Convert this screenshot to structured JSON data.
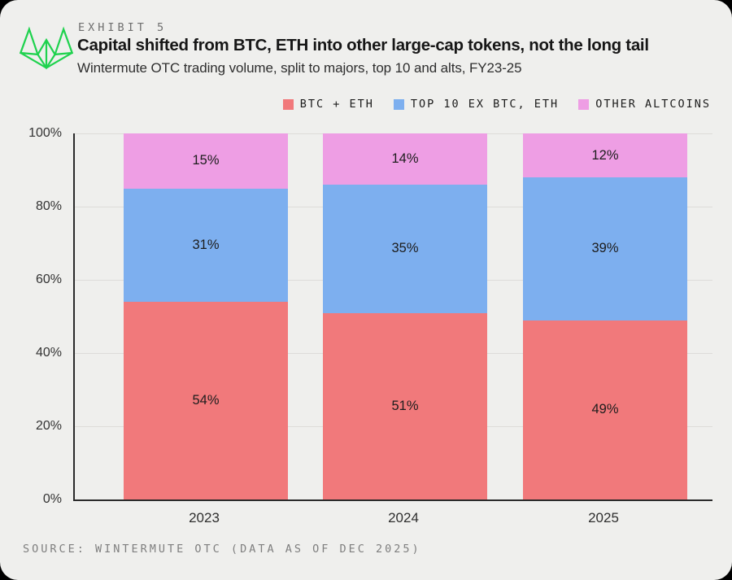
{
  "colors": {
    "background": "#000000",
    "card": "#efefed",
    "axis": "#2b2b2b",
    "grid": "#dddcd9",
    "text_dark": "#161616",
    "text_mid": "#2e2e2e",
    "text_gray": "#6f6f6f",
    "source_gray": "#7f7f7f",
    "logo_green": "#1fd24e"
  },
  "header": {
    "exhibit_label": "EXHIBIT 5",
    "title": "Capital shifted from BTC, ETH into other large-cap tokens, not the long tail",
    "subtitle": "Wintermute OTC trading volume, split to majors, top 10 and alts, FY23-25"
  },
  "logo": {
    "icon": "wintermute-logo"
  },
  "chart_data": {
    "type": "bar",
    "stacked": true,
    "categories": [
      "2023",
      "2024",
      "2025"
    ],
    "series": [
      {
        "name": "BTC + ETH",
        "color": "#f1797b",
        "values": [
          54,
          51,
          49
        ]
      },
      {
        "name": "TOP 10 EX BTC, ETH",
        "color": "#7dafef",
        "values": [
          31,
          35,
          39
        ]
      },
      {
        "name": "OTHER ALTCOINS",
        "color": "#ee9ee4",
        "values": [
          15,
          14,
          12
        ]
      }
    ],
    "value_suffix": "%",
    "ylim": [
      0,
      100
    ],
    "ytick_values": [
      0,
      20,
      40,
      60,
      80,
      100
    ],
    "ytick_labels": [
      "0%",
      "20%",
      "40%",
      "60%",
      "80%",
      "100%"
    ],
    "grid": true,
    "legend_position": "top-right",
    "xlabel": "",
    "ylabel": ""
  },
  "footer": {
    "source": "SOURCE: WINTERMUTE OTC (DATA AS OF DEC 2025)"
  }
}
